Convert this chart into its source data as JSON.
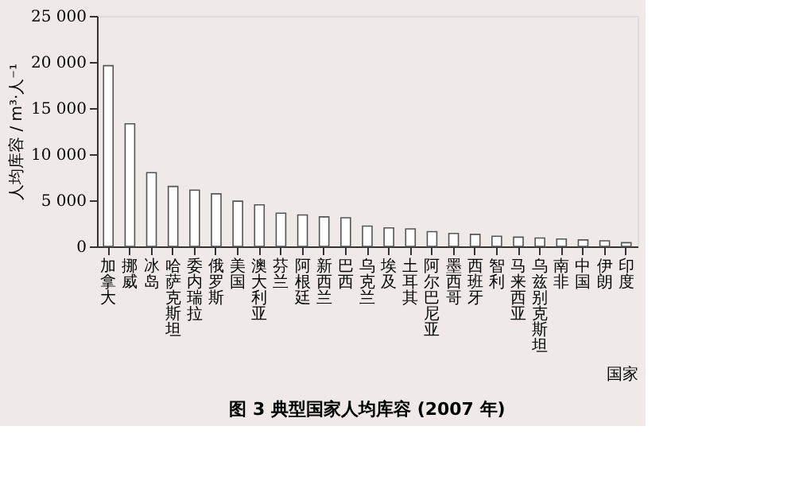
{
  "chart_data": {
    "type": "bar",
    "title": "图 3  典型国家人均库容 (2007 年)",
    "xlabel": "国家",
    "ylabel": "人均库容 / m³·人⁻¹",
    "categories": [
      "加拿大",
      "挪威",
      "冰岛",
      "哈萨克斯坦",
      "委内瑞拉",
      "俄罗斯",
      "美国",
      "澳大利亚",
      "芬兰",
      "阿根廷",
      "新西兰",
      "巴西",
      "乌克兰",
      "埃及",
      "土耳其",
      "阿尔巴尼亚",
      "墨西哥",
      "西班牙",
      "智利",
      "马来西亚",
      "乌兹别克斯坦",
      "南非",
      "中国",
      "伊朗",
      "印度"
    ],
    "values": [
      19600,
      13300,
      8000,
      6500,
      6100,
      5700,
      4900,
      4500,
      3600,
      3400,
      3200,
      3100,
      2200,
      2000,
      1900,
      1600,
      1400,
      1300,
      1100,
      1000,
      900,
      800,
      700,
      600,
      400
    ],
    "color": "#ffffff",
    "ylim": [
      0,
      25000
    ],
    "yticks": [
      0,
      {
        "value": 5000,
        "label": "5 000"
      },
      {
        "value": 10000,
        "label": "10 000"
      },
      {
        "value": 15000,
        "label": "15 000"
      },
      {
        "value": 20000,
        "label": "20 000"
      },
      {
        "value": 25000,
        "label": "25 000"
      }
    ],
    "grid": false
  }
}
